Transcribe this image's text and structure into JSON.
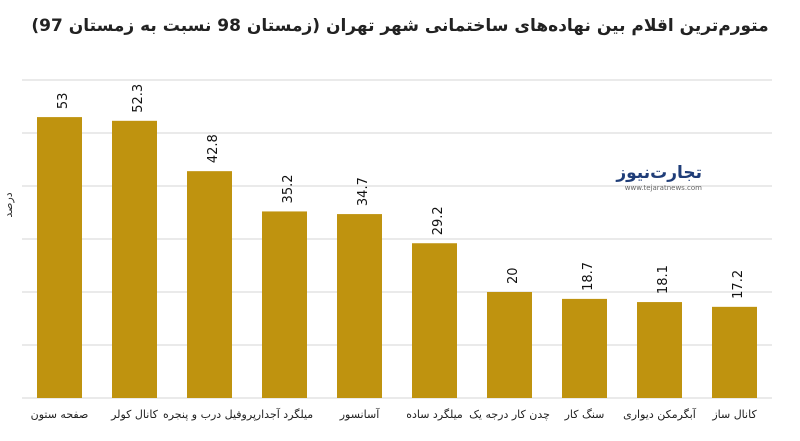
{
  "chart_data": {
    "type": "bar",
    "title": "متورم‌ترین اقلام بین نهاده‌های ساختمانی شهر تهران (زمستان 98 نسبت به زمستان 97)",
    "ylabel": "درصد",
    "xlabel": "",
    "categories": [
      "صفحه ستون",
      "کانال کولر",
      "پروفیل درب و پنجره",
      "میلگرد آجدار",
      "آسانسور",
      "میلگرد ساده",
      "چدن کار درجه یک",
      "سنگ کار",
      "آبگرمکن دیواری",
      "کانال ساز"
    ],
    "values": [
      53,
      52.3,
      42.8,
      35.2,
      34.7,
      29.2,
      20,
      18.7,
      18.1,
      17.2
    ],
    "value_labels": [
      "53",
      "52.3",
      "42.8",
      "35.2",
      "34.7",
      "29.2",
      "20",
      "18.7",
      "18.1",
      "17.2"
    ],
    "ylim": [
      0,
      60
    ],
    "grid": true,
    "bar_color": "#bf930f"
  },
  "watermark": {
    "brand": "تجارت‌نیوز",
    "url": "www.tejaratnews.com",
    "brand_color": "#1f3d78",
    "accent_color": "#e02424"
  }
}
